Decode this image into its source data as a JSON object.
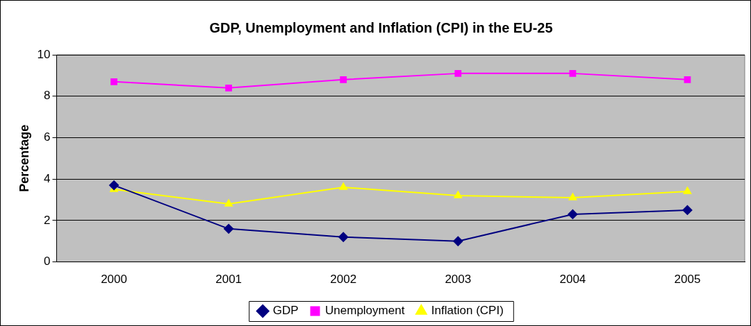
{
  "chart_data": {
    "type": "line",
    "title": "GDP, Unemployment and Inflation (CPI) in the EU-25",
    "ylabel": "Percentage",
    "categories": [
      "2000",
      "2001",
      "2002",
      "2003",
      "2004",
      "2005"
    ],
    "series": [
      {
        "name": "GDP",
        "color": "#000080",
        "marker": "diamond",
        "values": [
          3.7,
          1.6,
          1.2,
          1.0,
          2.3,
          2.5
        ]
      },
      {
        "name": "Unemployment",
        "color": "#ff00ff",
        "marker": "square",
        "values": [
          8.7,
          8.4,
          8.8,
          9.1,
          9.1,
          8.8
        ]
      },
      {
        "name": "Inflation (CPI)",
        "color": "#ffff00",
        "marker": "triangle",
        "values": [
          3.5,
          2.8,
          3.6,
          3.2,
          3.1,
          3.4
        ]
      }
    ],
    "ylim": [
      0,
      10
    ],
    "yticks": [
      0,
      2,
      4,
      6,
      8,
      10
    ],
    "grid": "y",
    "legend": "bottom",
    "line_style": "solid"
  }
}
